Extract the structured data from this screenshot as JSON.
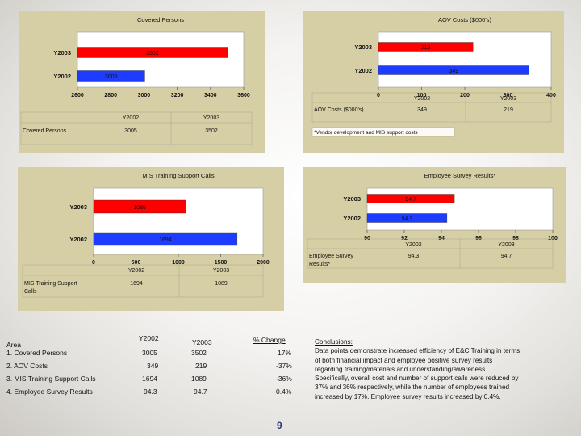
{
  "colors": {
    "y2003": "#ff0000",
    "y2002": "#1e3cff",
    "panel": "#d6cfa6",
    "plot": "#ffffff"
  },
  "chart_data": [
    {
      "id": "covered",
      "type": "bar",
      "orientation": "horizontal",
      "title": "Covered Persons",
      "categories": [
        "Y2003",
        "Y2002"
      ],
      "values": [
        3502,
        3005
      ],
      "xlim": [
        2600,
        3600
      ],
      "xticks": [
        "2600",
        "2800",
        "3000",
        "3200",
        "3400",
        "3600"
      ],
      "value_labels": [
        "3502",
        "3005"
      ],
      "table": {
        "headers": [
          "Y2002",
          "Y2003"
        ],
        "row_label": "Covered Persons",
        "row": [
          "3005",
          "3502"
        ]
      }
    },
    {
      "id": "aov",
      "type": "bar",
      "orientation": "horizontal",
      "title": "AOV Costs ($000's)",
      "categories": [
        "Y2003",
        "Y2002"
      ],
      "values": [
        219,
        349
      ],
      "xlim": [
        0,
        400
      ],
      "xticks": [
        "0",
        "100",
        "200",
        "300",
        "400"
      ],
      "value_labels": [
        "219",
        "349"
      ],
      "table": {
        "headers": [
          "Y2002",
          "Y2003"
        ],
        "row_label": "AOV Costs ($000's)",
        "row": [
          "349",
          "219"
        ]
      },
      "note": "*Vendor development and MIS support costs"
    },
    {
      "id": "mis",
      "type": "bar",
      "orientation": "horizontal",
      "title": "MIS Training Support Calls",
      "categories": [
        "Y2003",
        "Y2002"
      ],
      "values": [
        1089,
        1694
      ],
      "xlim": [
        0,
        2000
      ],
      "xticks": [
        "0",
        "500",
        "1000",
        "1500",
        "2000"
      ],
      "value_labels": [
        "1089",
        "1694"
      ],
      "table": {
        "headers": [
          "Y2002",
          "Y2003"
        ],
        "row_label": "MIS Training Support Calls",
        "row": [
          "1694",
          "1089"
        ]
      }
    },
    {
      "id": "survey",
      "type": "bar",
      "orientation": "horizontal",
      "title": "Employee Survey Results*",
      "categories": [
        "Y2003",
        "Y2002"
      ],
      "values": [
        94.7,
        94.3
      ],
      "xlim": [
        90,
        100
      ],
      "xticks": [
        "90",
        "92",
        "94",
        "96",
        "98",
        "100"
      ],
      "value_labels": [
        "94.7",
        "94.3"
      ],
      "table": {
        "headers": [
          "Y2002",
          "Y2003"
        ],
        "row_label": "Employee Survey Results*",
        "row": [
          "94.3",
          "94.7"
        ]
      }
    }
  ],
  "summary": {
    "headers": {
      "area": "Area",
      "y2002": "Y2002",
      "y2003": "Y2003",
      "change": "% Change"
    },
    "rows": [
      {
        "area": "1. Covered Persons",
        "y2002": "3005",
        "y2003": "3502",
        "change": "17%"
      },
      {
        "area": "2. AOV Costs",
        "y2002": "349",
        "y2003": "219",
        "change": "-37%"
      },
      {
        "area": "3. MIS Training Support Calls",
        "y2002": "1694",
        "y2003": "1089",
        "change": "-36%"
      },
      {
        "area": "4. Employee Survey Results",
        "y2002": "94.3",
        "y2003": "94.7",
        "change": "0.4%"
      }
    ]
  },
  "conclusions": {
    "heading": "Conclusions:",
    "lines": [
      "Data points demonstrate increased efficiency of E&C Training in terms",
      "of both financial impact and employee positive survey results",
      "regarding  training/materials and understanding/awareness.",
      "Specifically, overall cost and number of support calls were reduced by",
      "37% and 36% respectively, while the number of employees trained",
      "increased by 17%. Employee survey results increased by 0.4%."
    ]
  },
  "page_number": "9"
}
